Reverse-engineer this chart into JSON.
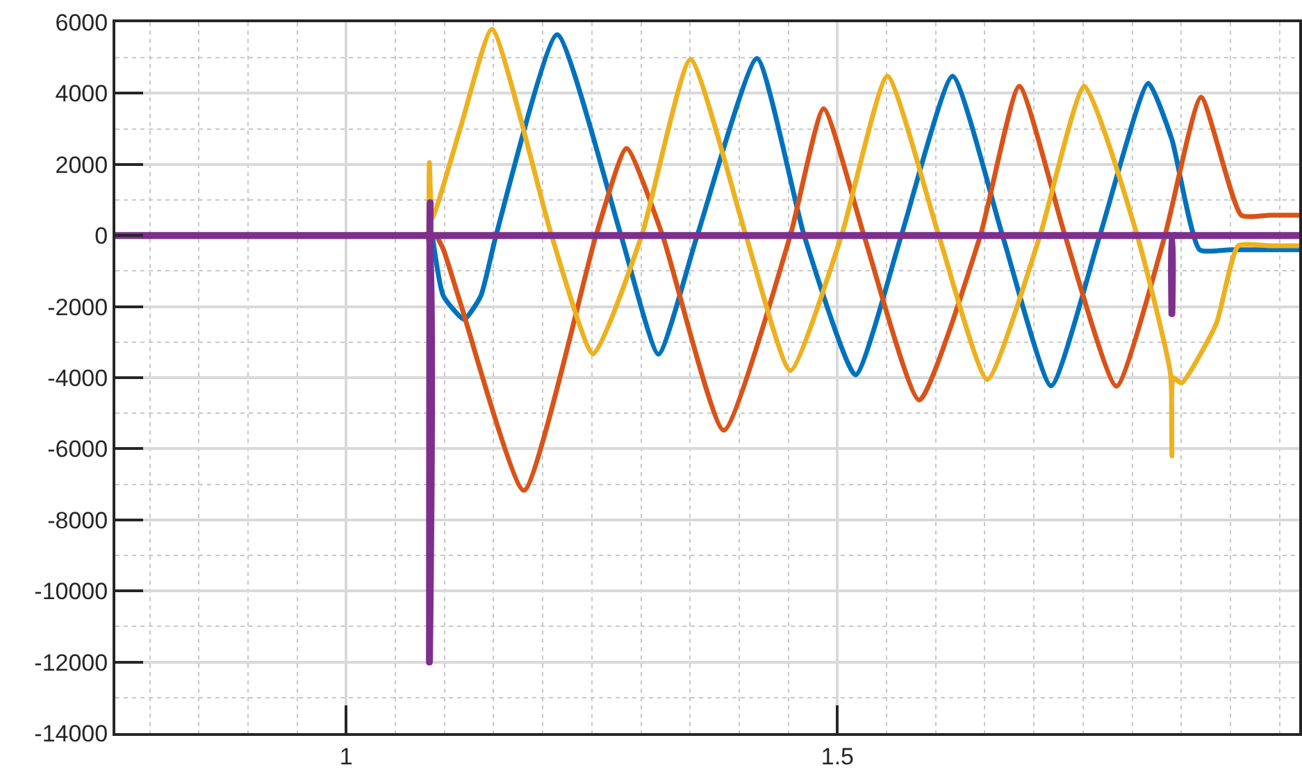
{
  "chart_data": {
    "type": "line",
    "xlim": [
      0.765,
      1.97
    ],
    "ylim": [
      -14000,
      6000
    ],
    "xticks": [
      1,
      1.5
    ],
    "yticks": [
      -14000,
      -12000,
      -10000,
      -8000,
      -6000,
      -4000,
      -2000,
      0,
      2000,
      4000,
      6000
    ],
    "grid": true,
    "marker": "none",
    "line_style": "solid",
    "series": [
      {
        "color": "#0072bd",
        "x": [
          1.0876,
          1.0989,
          1.12,
          1.137,
          1.1525,
          1.2147,
          1.2797,
          1.3178,
          1.3573,
          1.4181,
          1.4661,
          1.5184,
          1.565,
          1.6172,
          1.668,
          1.7175,
          1.767,
          1.8164,
          1.8404,
          1.8686,
          1.9,
          1.94,
          1.97
        ],
        "values": [
          0,
          -1700,
          -2360,
          -1700,
          0,
          5650,
          0,
          -3340,
          0,
          4980,
          0,
          -3920,
          0,
          4480,
          0,
          -4230,
          0,
          4280,
          2700,
          -400,
          -400,
          -400,
          -400
        ]
      },
      {
        "color": "#d95319",
        "x": [
          1.0918,
          1.099,
          1.117,
          1.1808,
          1.2542,
          1.2853,
          1.322,
          1.3842,
          1.452,
          1.4859,
          1.527,
          1.5833,
          1.6455,
          1.685,
          1.7316,
          1.7839,
          1.8333,
          1.8701,
          1.911,
          1.94,
          1.97
        ],
        "values": [
          0,
          -400,
          -1970,
          -7170,
          0,
          2450,
          0,
          -5480,
          0,
          3570,
          0,
          -4630,
          0,
          4200,
          0,
          -4240,
          0,
          3890,
          570,
          570,
          570
        ]
      },
      {
        "color": "#edb120",
        "x": [
          1.084,
          1.0847,
          1.0876,
          1.117,
          1.1483,
          1.209,
          1.2514,
          1.3008,
          1.3503,
          1.4068,
          1.452,
          1.5042,
          1.5508,
          1.6031,
          1.6525,
          1.7062,
          1.7514,
          1.8051,
          1.839,
          1.8404,
          1.8418,
          1.8503,
          1.8856,
          1.908,
          1.94,
          1.97
        ],
        "values": [
          0,
          2050,
          500,
          3100,
          5800,
          0,
          -3330,
          0,
          4950,
          0,
          -3800,
          0,
          4480,
          0,
          -4050,
          0,
          4200,
          0,
          -3900,
          -6200,
          -4000,
          -4150,
          -2480,
          -290,
          -290,
          -290
        ]
      },
      {
        "color": "#7e2f8e",
        "x": [
          0.765,
          0.85,
          0.95,
          1.05,
          1.08,
          1.084,
          1.0847,
          1.0854,
          1.0862,
          1.09,
          1.1,
          1.2,
          1.3,
          1.4,
          1.5,
          1.6,
          1.7,
          1.8,
          1.835,
          1.8395,
          1.8404,
          1.8413,
          1.845,
          1.9,
          1.97
        ],
        "values": [
          0,
          0,
          0,
          0,
          0,
          0,
          -12000,
          920,
          0,
          0,
          0,
          0,
          0,
          0,
          0,
          0,
          0,
          0,
          0,
          0,
          -2200,
          0,
          0,
          0,
          0
        ]
      }
    ]
  }
}
